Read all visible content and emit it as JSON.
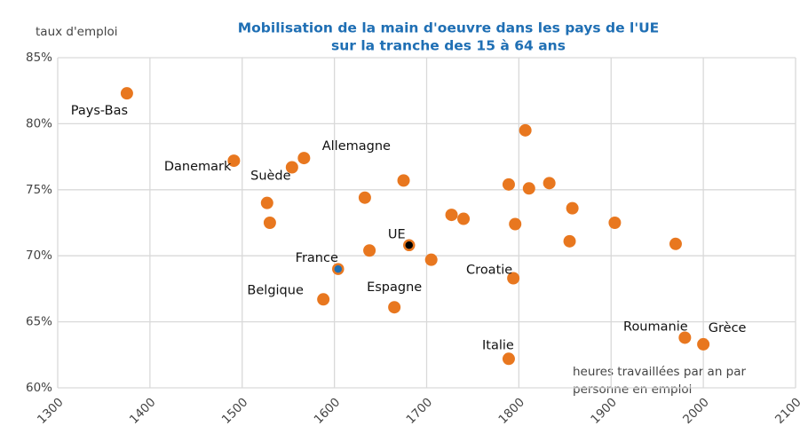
{
  "chart_data": {
    "type": "scatter",
    "title": [
      "Mobilisation de la main d'oeuvre dans les pays de l'UE",
      "sur la tranche des 15 à 64 ans"
    ],
    "ylabel": "taux d'emploi",
    "xlabel": [
      "heures travaillées par an par",
      "personne en emploi"
    ],
    "xlim": [
      1300,
      2100
    ],
    "xticks": [
      1300,
      1400,
      1500,
      1600,
      1700,
      1800,
      1900,
      2000,
      2100
    ],
    "ylim": [
      60,
      85
    ],
    "yticks": [
      {
        "value": 60,
        "label": "60%"
      },
      {
        "value": 65,
        "label": "65%"
      },
      {
        "value": 70,
        "label": "70%"
      },
      {
        "value": 75,
        "label": "75%"
      },
      {
        "value": 80,
        "label": "80%"
      },
      {
        "value": 85,
        "label": "85%"
      }
    ],
    "grid": true,
    "series": [
      {
        "color": "#e8771f",
        "x": [
          1375,
          1491,
          1567,
          1554,
          1527,
          1530,
          1633,
          1675,
          1638,
          1705,
          1588,
          1665,
          1727,
          1740,
          1789,
          1796,
          1794,
          1789,
          1807,
          1811,
          1833,
          1858,
          1855,
          1904,
          1970,
          1980,
          2000
        ],
        "y": [
          82.3,
          77.2,
          77.4,
          76.7,
          74.0,
          72.5,
          74.4,
          75.7,
          70.4,
          69.7,
          66.7,
          66.1,
          73.1,
          72.8,
          75.4,
          72.4,
          68.3,
          62.2,
          79.5,
          75.1,
          75.5,
          73.6,
          71.1,
          72.5,
          70.9,
          63.8,
          63.3
        ],
        "labels": [
          "Pays-Bas",
          "Danemark",
          "Allemagne",
          "Suède",
          null,
          null,
          null,
          null,
          null,
          null,
          "Belgique",
          "Espagne",
          null,
          null,
          null,
          null,
          "Croatie",
          "Italie",
          null,
          null,
          null,
          null,
          null,
          null,
          null,
          "Roumanie",
          "Grèce"
        ]
      },
      {
        "color": "#1f6fb4",
        "x": [
          1604
        ],
        "y": [
          69.0
        ],
        "labels": [
          "France"
        ]
      },
      {
        "color": "#000000",
        "x": [
          1681
        ],
        "y": [
          70.8
        ],
        "labels": [
          "UE"
        ]
      }
    ]
  }
}
